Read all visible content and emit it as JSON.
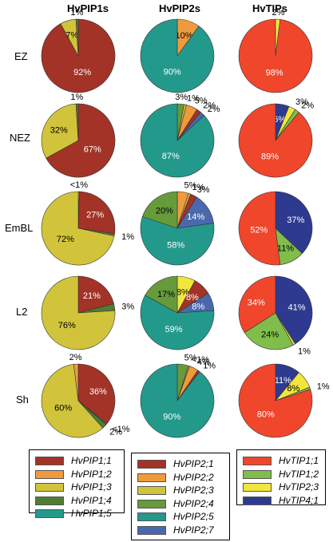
{
  "figure": {
    "column_titles": [
      "HvPIP1s",
      "HvPIP2s",
      "HvTIPs"
    ],
    "row_labels": [
      "EZ",
      "NEZ",
      "EmBL",
      "L2",
      "Sh"
    ]
  },
  "legends": [
    {
      "items": [
        {
          "label": "HvPIP1;1",
          "color": "#a33327"
        },
        {
          "label": "HvPIP1;2",
          "color": "#f09a3e"
        },
        {
          "label": "HvPIP1;3",
          "color": "#d1c43b"
        },
        {
          "label": "HvPIP1;4",
          "color": "#4f7d32"
        },
        {
          "label": "HvPIP1;5",
          "color": "#23998c"
        }
      ]
    },
    {
      "items": [
        {
          "label": "HvPIP2;1",
          "color": "#a33327"
        },
        {
          "label": "HvPIP2;2",
          "color": "#f09a3e"
        },
        {
          "label": "HvPIP2;3",
          "color": "#d1c43b"
        },
        {
          "label": "HvPIP2;4",
          "color": "#679a3a"
        },
        {
          "label": "HvPIP2;5",
          "color": "#23998c"
        },
        {
          "label": "HvPIP2;7",
          "color": "#4a69ad"
        }
      ]
    },
    {
      "items": [
        {
          "label": "HvTIP1;1",
          "color": "#f0462c"
        },
        {
          "label": "HvTIP1;2",
          "color": "#80bd4b"
        },
        {
          "label": "HvTIP2;3",
          "color": "#f2e63c"
        },
        {
          "label": "HvTIP4;1",
          "color": "#2e3a8f"
        }
      ]
    }
  ],
  "chart_data": [
    {
      "type": "pie",
      "column": "HvPIP1s",
      "row": "EZ",
      "slices": [
        {
          "name": "HvPIP1;1",
          "value": 92,
          "label": "92%",
          "color": "#a33327"
        },
        {
          "name": "HvPIP1;3",
          "value": 7,
          "label": "7%",
          "color": "#d1c43b"
        },
        {
          "name": "HvPIP1;4",
          "value": 1,
          "label": "1%",
          "color": "#4f7d32"
        }
      ]
    },
    {
      "type": "pie",
      "column": "HvPIP2s",
      "row": "EZ",
      "slices": [
        {
          "name": "HvPIP2;2",
          "value": 10,
          "label": "10%",
          "color": "#f09a3e"
        },
        {
          "name": "HvPIP2;5",
          "value": 90,
          "label": "90%",
          "color": "#23998c"
        }
      ]
    },
    {
      "type": "pie",
      "column": "HvTIPs",
      "row": "EZ",
      "slices": [
        {
          "name": "HvTIP2;3",
          "value": 2,
          "label": "2%",
          "color": "#f2e63c"
        },
        {
          "name": "HvTIP1;1",
          "value": 98,
          "label": "98%",
          "color": "#f0462c"
        }
      ]
    },
    {
      "type": "pie",
      "column": "HvPIP1s",
      "row": "NEZ",
      "slices": [
        {
          "name": "HvPIP1;1",
          "value": 67,
          "label": "67%",
          "color": "#a33327"
        },
        {
          "name": "HvPIP1;3",
          "value": 32,
          "label": "32%",
          "color": "#d1c43b"
        },
        {
          "name": "HvPIP1;4",
          "value": 1,
          "label": "1%",
          "color": "#4f7d32"
        }
      ]
    },
    {
      "type": "pie",
      "column": "HvPIP2s",
      "row": "NEZ",
      "slices": [
        {
          "name": "HvPIP2;4",
          "value": 3,
          "label": "3%",
          "color": "#679a3a"
        },
        {
          "name": "HvPIP2;3",
          "value": 1,
          "label": "1%",
          "color": "#d1c43b"
        },
        {
          "name": "HvPIP2;2",
          "value": 5,
          "label": "5%",
          "color": "#f09a3e"
        },
        {
          "name": "HvPIP2;1",
          "value": 2,
          "label": "2%",
          "color": "#a33327"
        },
        {
          "name": "HvPIP2;7",
          "value": 2,
          "label": "2%",
          "color": "#4a69ad"
        },
        {
          "name": "HvPIP2;5",
          "value": 87,
          "label": "87%",
          "color": "#23998c"
        }
      ]
    },
    {
      "type": "pie",
      "column": "HvTIPs",
      "row": "NEZ",
      "slices": [
        {
          "name": "HvTIP4;1",
          "value": 6,
          "label": "6%",
          "color": "#2e3a8f"
        },
        {
          "name": "HvTIP2;3",
          "value": 3,
          "label": "3%",
          "color": "#f2e63c"
        },
        {
          "name": "HvTIP1;2",
          "value": 2,
          "label": "2%",
          "color": "#80bd4b"
        },
        {
          "name": "HvTIP1;1",
          "value": 89,
          "label": "89%",
          "color": "#f0462c"
        }
      ]
    },
    {
      "type": "pie",
      "column": "HvPIP1s",
      "row": "EmBL",
      "slices": [
        {
          "name": "HvPIP1;2",
          "value": 0.5,
          "label": "<1%",
          "color": "#f09a3e"
        },
        {
          "name": "HvPIP1;1",
          "value": 27,
          "label": "27%",
          "color": "#a33327"
        },
        {
          "name": "HvPIP1;4",
          "value": 1,
          "label": "1%",
          "color": "#4f7d32"
        },
        {
          "name": "HvPIP1;3",
          "value": 72,
          "label": "72%",
          "color": "#d1c43b"
        }
      ]
    },
    {
      "type": "pie",
      "column": "HvPIP2s",
      "row": "EmBL",
      "slices": [
        {
          "name": "HvPIP2;2",
          "value": 5,
          "label": "5%",
          "color": "#f09a3e"
        },
        {
          "name": "HvPIP2;3",
          "value": 1,
          "label": "1%",
          "color": "#d1c43b"
        },
        {
          "name": "HvPIP2;1",
          "value": 3,
          "label": "3%",
          "color": "#a33327"
        },
        {
          "name": "HvPIP2;7",
          "value": 14,
          "label": "14%",
          "color": "#4a69ad"
        },
        {
          "name": "HvPIP2;5",
          "value": 58,
          "label": "58%",
          "color": "#23998c"
        },
        {
          "name": "HvPIP2;4",
          "value": 20,
          "label": "20%",
          "color": "#679a3a"
        }
      ]
    },
    {
      "type": "pie",
      "column": "HvTIPs",
      "row": "EmBL",
      "slices": [
        {
          "name": "HvTIP4;1",
          "value": 37,
          "label": "37%",
          "color": "#2e3a8f"
        },
        {
          "name": "HvTIP1;2",
          "value": 11,
          "label": "11%",
          "color": "#80bd4b"
        },
        {
          "name": "HvTIP1;1",
          "value": 52,
          "label": "52%",
          "color": "#f0462c"
        }
      ]
    },
    {
      "type": "pie",
      "column": "HvPIP1s",
      "row": "L2",
      "slices": [
        {
          "name": "HvPIP1;1",
          "value": 21,
          "label": "21%",
          "color": "#a33327"
        },
        {
          "name": "HvPIP1;4",
          "value": 3,
          "label": "3%",
          "color": "#4f7d32"
        },
        {
          "name": "HvPIP1;3",
          "value": 76,
          "label": "76%",
          "color": "#d1c43b"
        }
      ]
    },
    {
      "type": "pie",
      "column": "HvPIP2s",
      "row": "L2",
      "slices": [
        {
          "name": "HvPIP2;3",
          "value": 8,
          "label": "8%",
          "color": "#f2e63c"
        },
        {
          "name": "HvPIP2;1",
          "value": 8,
          "label": "8%",
          "color": "#a33327"
        },
        {
          "name": "HvPIP2;7",
          "value": 8,
          "label": "8%",
          "color": "#4a69ad"
        },
        {
          "name": "HvPIP2;5",
          "value": 59,
          "label": "59%",
          "color": "#23998c"
        },
        {
          "name": "HvPIP2;4",
          "value": 17,
          "label": "17%",
          "color": "#679a3a"
        }
      ]
    },
    {
      "type": "pie",
      "column": "HvTIPs",
      "row": "L2",
      "slices": [
        {
          "name": "HvTIP4;1",
          "value": 41,
          "label": "41%",
          "color": "#2e3a8f"
        },
        {
          "name": "HvTIP2;3",
          "value": 1,
          "label": "1%",
          "color": "#f2e63c"
        },
        {
          "name": "HvTIP1;2",
          "value": 24,
          "label": "24%",
          "color": "#80bd4b"
        },
        {
          "name": "HvTIP1;1",
          "value": 34,
          "label": "34%",
          "color": "#f0462c"
        }
      ]
    },
    {
      "type": "pie",
      "column": "HvPIP1s",
      "row": "Sh",
      "slices": [
        {
          "name": "HvPIP1;1",
          "value": 36,
          "label": "36%",
          "color": "#a33327"
        },
        {
          "name": "HvPIP1;5",
          "value": 0.5,
          "label": "<1%",
          "color": "#23998c"
        },
        {
          "name": "HvPIP1;4",
          "value": 2,
          "label": "2%",
          "color": "#4f7d32"
        },
        {
          "name": "HvPIP1;3",
          "value": 60,
          "label": "60%",
          "color": "#d1c43b"
        },
        {
          "name": "HvPIP1;2",
          "value": 2,
          "label": "2%",
          "color": "#f09a3e"
        }
      ]
    },
    {
      "type": "pie",
      "column": "HvPIP2s",
      "row": "Sh",
      "slices": [
        {
          "name": "HvPIP2;4",
          "value": 5,
          "label": "5%",
          "color": "#679a3a"
        },
        {
          "name": "HvPIP2;3",
          "value": 0.5,
          "label": "<1%",
          "color": "#d1c43b"
        },
        {
          "name": "HvPIP2;2",
          "value": 4,
          "label": "4%",
          "color": "#f09a3e"
        },
        {
          "name": "HvPIP2;1",
          "value": 1,
          "label": "1%",
          "color": "#a33327"
        },
        {
          "name": "HvPIP2;5",
          "value": 90,
          "label": "90%",
          "color": "#23998c"
        }
      ]
    },
    {
      "type": "pie",
      "column": "HvTIPs",
      "row": "Sh",
      "slices": [
        {
          "name": "HvTIP4;1",
          "value": 11,
          "label": "11%",
          "color": "#2e3a8f"
        },
        {
          "name": "HvTIP2;3",
          "value": 8,
          "label": "8%",
          "color": "#f2e63c"
        },
        {
          "name": "HvTIP1;2",
          "value": 1,
          "label": "1%",
          "color": "#80bd4b"
        },
        {
          "name": "HvTIP1;1",
          "value": 80,
          "label": "80%",
          "color": "#f0462c"
        }
      ]
    }
  ]
}
